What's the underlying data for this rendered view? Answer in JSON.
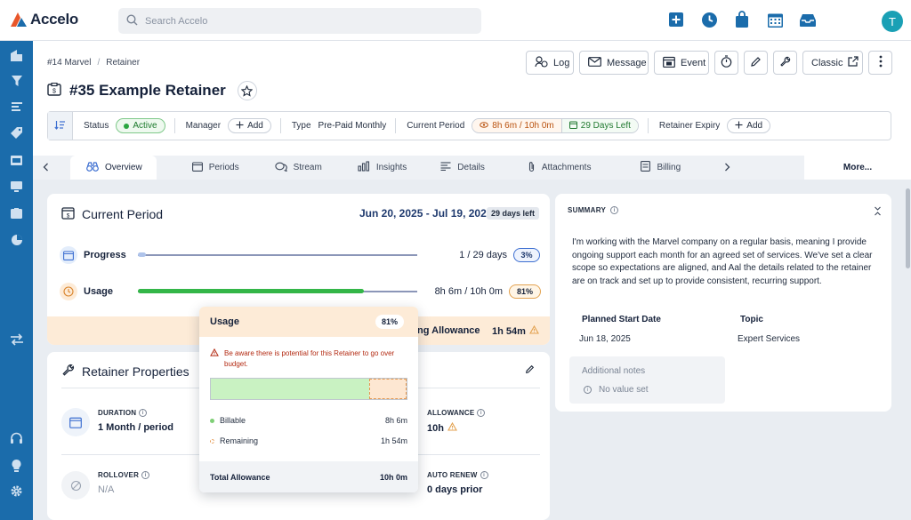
{
  "app": {
    "brand": "Accelo",
    "avatar_initial": "T",
    "colors": {
      "primary": "#1b6cab",
      "accent": "#e8562a",
      "success": "#2aa640",
      "warning": "#e3a250"
    }
  },
  "search": {
    "placeholder": "Search Accelo",
    "value": ""
  },
  "topbar": {
    "icons": [
      "plus-square-icon",
      "clock-icon",
      "bag-icon",
      "calendar-icon",
      "inbox-icon"
    ]
  },
  "sidebar": {
    "icons": [
      "building-icon",
      "filter-icon",
      "list-icon",
      "tag-icon",
      "ticket-icon",
      "monitor-icon",
      "contract-icon",
      "pie-chart-icon",
      "transfer-icon",
      "headset-icon",
      "lightbulb-icon",
      "gear-icon"
    ]
  },
  "breadcrumb": {
    "parent": "#14 Marvel",
    "sep": "/",
    "current": "Retainer"
  },
  "page": {
    "title": "#35 Example Retainer"
  },
  "actions": {
    "log": "Log",
    "message": "Message",
    "event": "Event",
    "classic": "Classic"
  },
  "info": {
    "status_label": "Status",
    "status_value": "Active",
    "manager_label": "Manager",
    "manager_add": "Add",
    "type_label": "Type",
    "type_value": "Pre-Paid Monthly",
    "period_label": "Current Period",
    "period_time": "8h 6m / 10h 0m",
    "period_days": "29 Days Left",
    "expiry_label": "Retainer Expiry",
    "expiry_add": "Add"
  },
  "tabs": {
    "overview": "Overview",
    "periods": "Periods",
    "stream": "Stream",
    "insights": "Insights",
    "details": "Details",
    "attachments": "Attachments",
    "billing": "Billing",
    "more": "More..."
  },
  "current_period": {
    "title": "Current Period",
    "dates": "Jun 20, 2025 - Jul 19, 2025",
    "days_left": "29 days left",
    "progress_label": "Progress",
    "progress_value": "1 / 29 days",
    "progress_pct": "3%",
    "progress_fraction": 0.03,
    "usage_label": "Usage",
    "usage_value": "8h 6m / 10h 0m",
    "usage_pct": "81%",
    "usage_fraction": 0.81,
    "allowance_label": "ing Allowance",
    "allowance_value": "1h 54m"
  },
  "retainer_properties": {
    "title": "Retainer Properties",
    "duration_label": "DURATION",
    "duration_value": "1 Month / period",
    "allowance_label": "ALLOWANCE",
    "allowance_value": "10h",
    "rollover_label": "ROLLOVER",
    "rollover_value": "N/A",
    "auto_renew_label": "AUTO RENEW",
    "auto_renew_value": "0 days prior"
  },
  "summary": {
    "heading": "SUMMARY",
    "text": "I'm working with the Marvel company on a regular basis, meaning I provide ongoing support each month for an agreed set of services. We've set a clear scope so expectations are aligned, and Aal the details related to the retainer are on track and set up to provide consistent, recurring support.",
    "planned_start_label": "Planned Start Date",
    "planned_start_value": "Jun 18, 2025",
    "topic_label": "Topic",
    "topic_value": "Expert Services",
    "notes_label": "Additional notes",
    "notes_value": "No value set"
  },
  "usage_popup": {
    "title": "Usage",
    "pct": "81%",
    "warning": "Be aware there is potential for this Retainer to go over budget.",
    "billable_fraction": 0.81,
    "billable_label": "Billable",
    "billable_value": "8h 6m",
    "remaining_label": "Remaining",
    "remaining_value": "1h 54m",
    "total_label": "Total Allowance",
    "total_value": "10h 0m"
  }
}
